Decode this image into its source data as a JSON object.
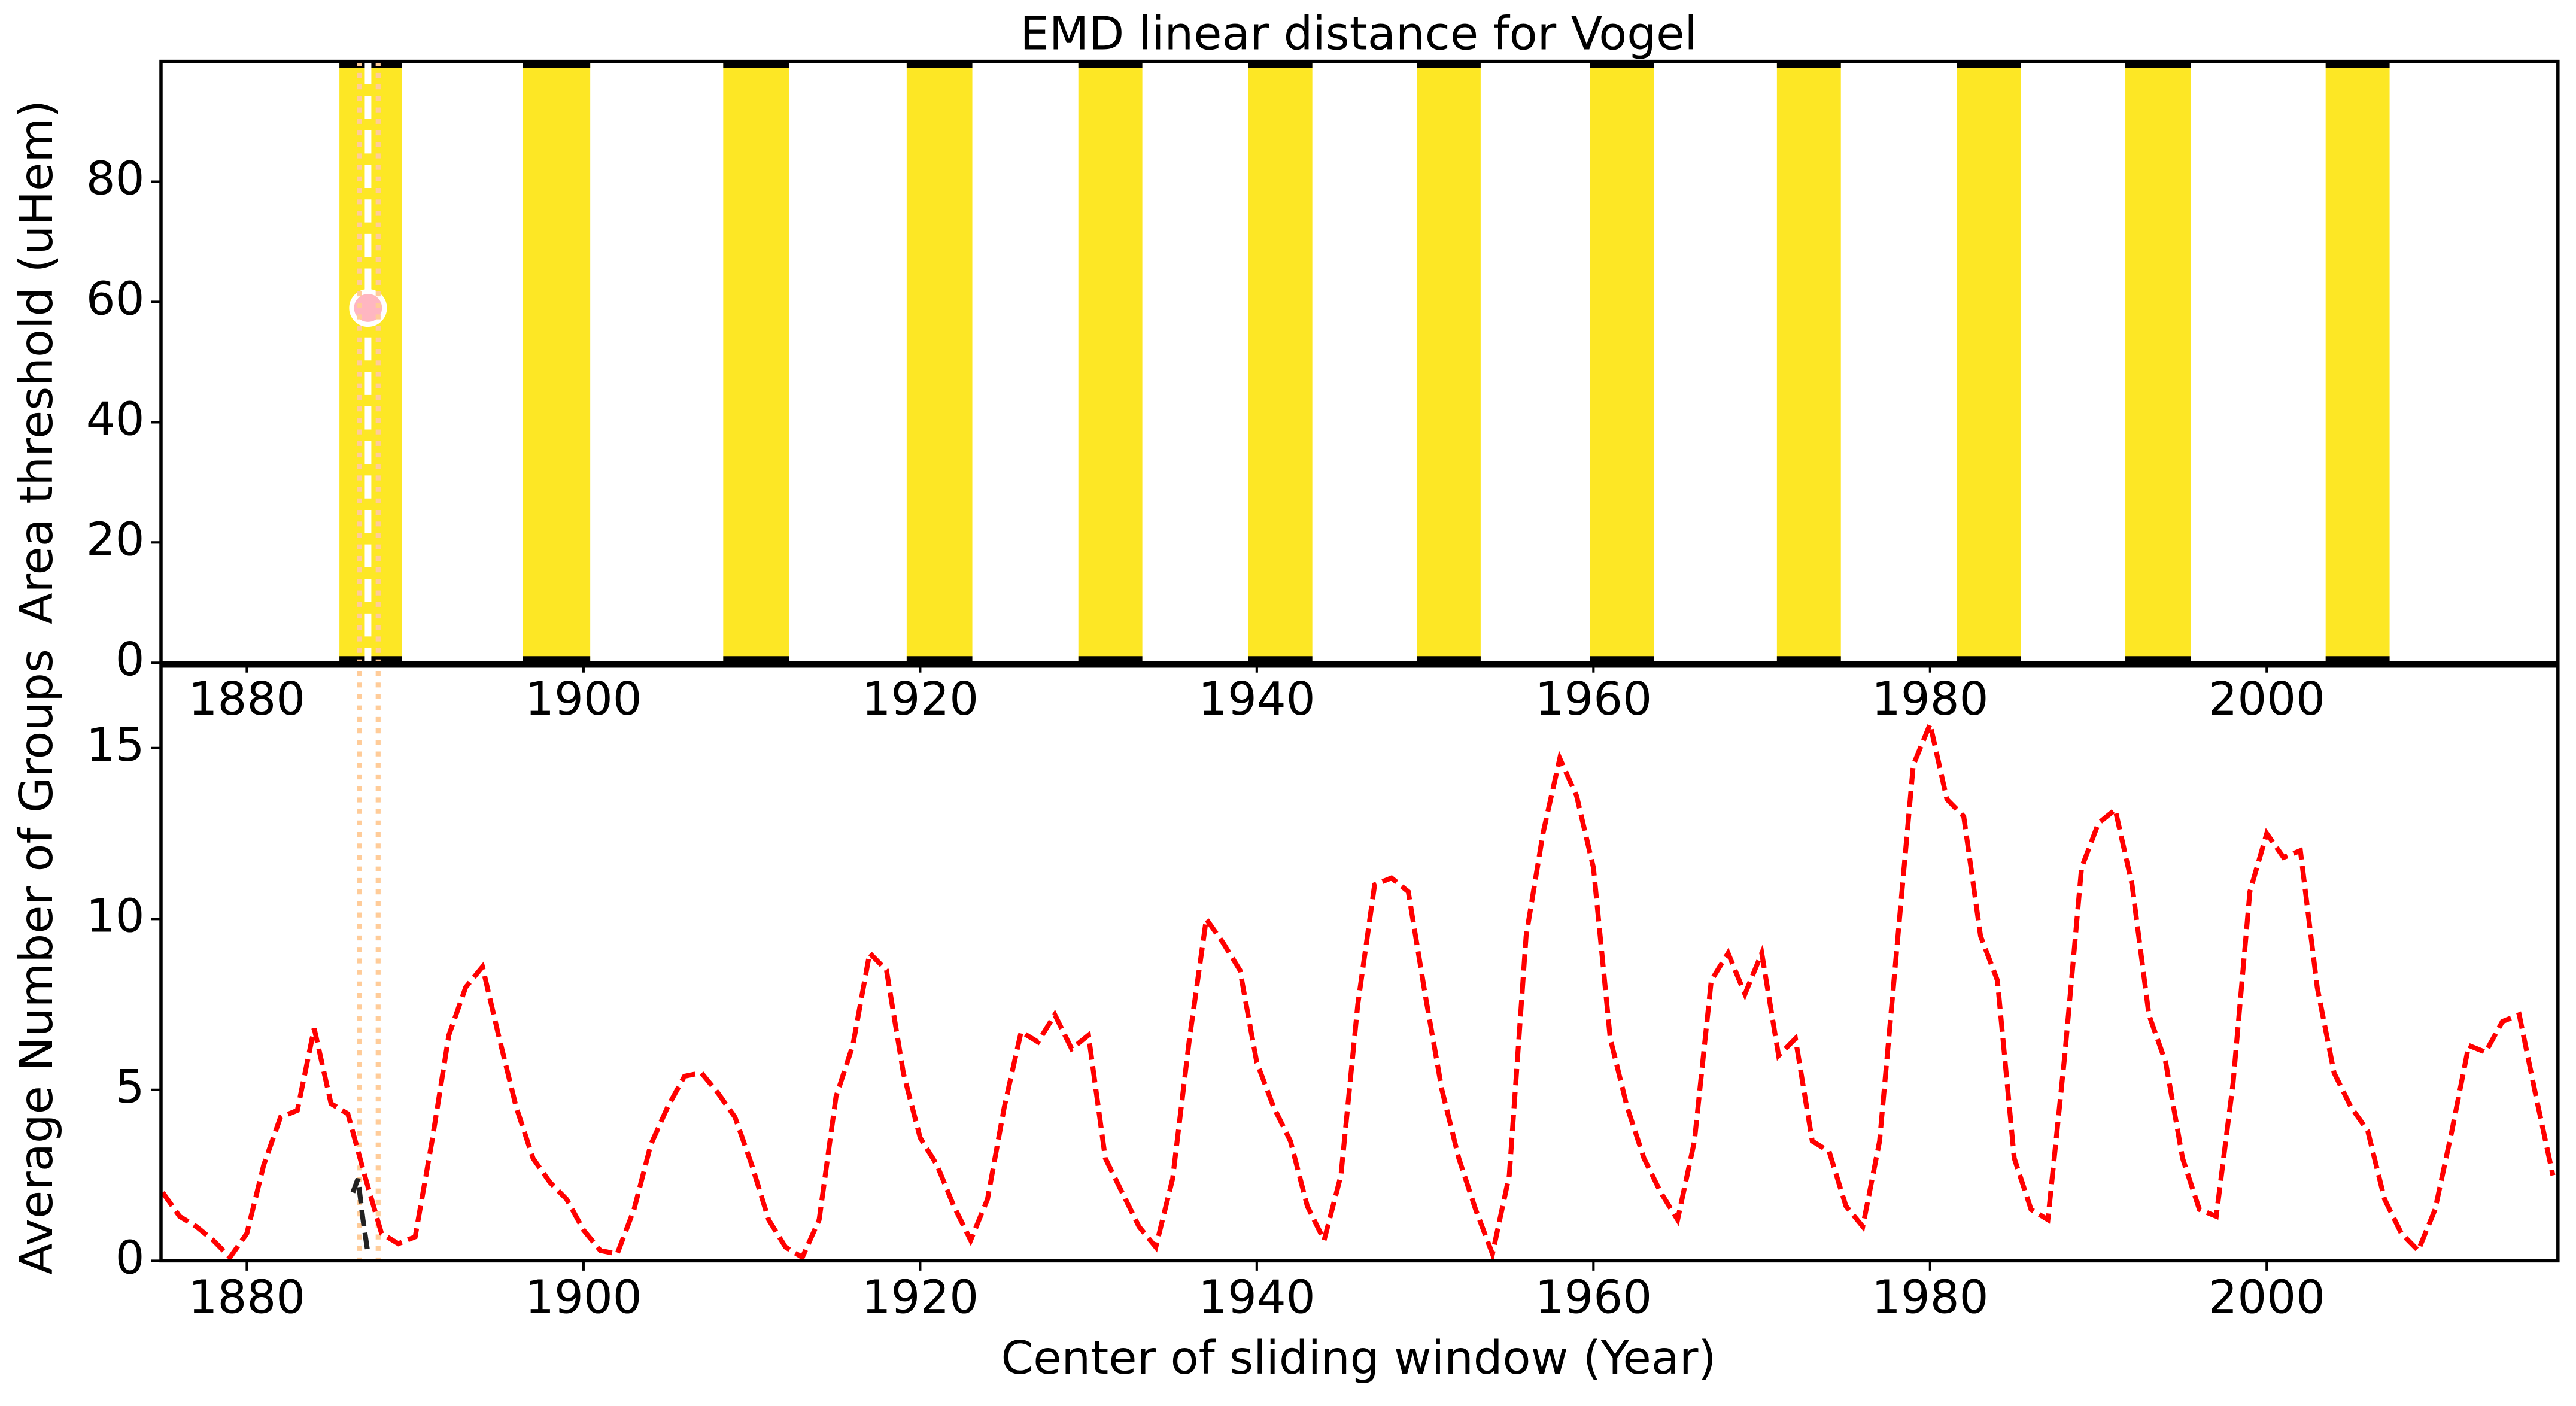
{
  "chart_data": [
    {
      "type": "bands",
      "title": "EMD linear distance for Vogel",
      "y_label": "Area threshold (uHem)",
      "xlim": [
        1874.9,
        2017.3
      ],
      "xticks": [
        1880,
        1900,
        1920,
        1940,
        1960,
        1980,
        2000
      ],
      "ylim": [
        0,
        100
      ],
      "yticks": [
        0,
        20,
        40,
        60,
        80
      ],
      "band_color": "#fde725",
      "edge_color": "#000000",
      "bands": [
        [
          1885.5,
          1889.2
        ],
        [
          1896.4,
          1900.4
        ],
        [
          1908.3,
          1912.2
        ],
        [
          1919.2,
          1923.1
        ],
        [
          1929.4,
          1933.2
        ],
        [
          1939.5,
          1943.3
        ],
        [
          1949.5,
          1953.3
        ],
        [
          1959.8,
          1963.6
        ],
        [
          1970.9,
          1974.7
        ],
        [
          1981.6,
          1985.4
        ],
        [
          1991.6,
          1995.5
        ],
        [
          2003.5,
          2007.3
        ]
      ],
      "marker": {
        "x": 1887.2,
        "y": 59,
        "color": "#ffb6c1"
      },
      "vline_x": 1887.2,
      "highlight_x": [
        1886.7,
        1887.8
      ],
      "highlight_color": "#ffcc99"
    },
    {
      "type": "line",
      "x_label": "Center of sliding window (Year)",
      "y_label": "Average Number of Groups",
      "xlim": [
        1874.9,
        2017.3
      ],
      "xticks": [
        1880,
        1900,
        1920,
        1940,
        1960,
        1980,
        2000
      ],
      "ylim": [
        0,
        17.4
      ],
      "yticks": [
        0,
        5,
        10,
        15
      ],
      "series": [
        {
          "color": "#ff0000",
          "dashed": true,
          "x": [
            1875,
            1876,
            1877,
            1878,
            1879,
            1880,
            1881,
            1882,
            1883,
            1884,
            1885,
            1886,
            1887,
            1888,
            1889,
            1890,
            1891,
            1892,
            1893,
            1894,
            1895,
            1896,
            1897,
            1898,
            1899,
            1900,
            1901,
            1902,
            1903,
            1904,
            1905,
            1906,
            1907,
            1908,
            1909,
            1910,
            1911,
            1912,
            1913,
            1914,
            1915,
            1916,
            1917,
            1918,
            1919,
            1920,
            1921,
            1922,
            1923,
            1924,
            1925,
            1926,
            1927,
            1928,
            1929,
            1930,
            1931,
            1932,
            1933,
            1934,
            1935,
            1936,
            1937,
            1938,
            1939,
            1940,
            1941,
            1942,
            1943,
            1944,
            1945,
            1946,
            1947,
            1948,
            1949,
            1950,
            1951,
            1952,
            1953,
            1954,
            1955,
            1956,
            1957,
            1958,
            1959,
            1960,
            1961,
            1962,
            1963,
            1964,
            1965,
            1966,
            1967,
            1968,
            1969,
            1970,
            1971,
            1972,
            1973,
            1974,
            1975,
            1976,
            1977,
            1978,
            1979,
            1980,
            1981,
            1982,
            1983,
            1984,
            1985,
            1986,
            1987,
            1988,
            1989,
            1990,
            1991,
            1992,
            1993,
            1994,
            1995,
            1996,
            1997,
            1998,
            1999,
            2000,
            2001,
            2002,
            2003,
            2004,
            2005,
            2006,
            2007,
            2008,
            2009,
            2010,
            2011,
            2012,
            2013,
            2014,
            2015,
            2016,
            2017
          ],
          "values": [
            2.0,
            1.3,
            1.0,
            0.6,
            0.1,
            0.8,
            2.8,
            4.2,
            4.4,
            6.8,
            4.6,
            4.3,
            2.5,
            0.8,
            0.5,
            0.7,
            3.5,
            6.6,
            8.0,
            8.6,
            6.5,
            4.5,
            3.0,
            2.3,
            1.8,
            0.9,
            0.3,
            0.2,
            1.5,
            3.4,
            4.5,
            5.4,
            5.5,
            4.9,
            4.2,
            2.8,
            1.2,
            0.4,
            0.1,
            1.2,
            4.8,
            6.3,
            9.0,
            8.5,
            5.5,
            3.6,
            2.8,
            1.6,
            0.6,
            1.8,
            4.5,
            6.7,
            6.4,
            7.2,
            6.2,
            6.6,
            3.0,
            2.0,
            1.0,
            0.4,
            2.4,
            6.5,
            10.0,
            9.3,
            8.5,
            5.8,
            4.5,
            3.5,
            1.6,
            0.6,
            2.5,
            7.5,
            11.0,
            11.2,
            10.8,
            7.8,
            5.0,
            3.0,
            1.5,
            0.2,
            2.5,
            9.5,
            12.5,
            14.7,
            13.6,
            11.5,
            6.5,
            4.5,
            3.0,
            2.0,
            1.2,
            3.5,
            8.2,
            9.0,
            7.8,
            9.0,
            6.0,
            6.5,
            3.5,
            3.2,
            1.6,
            1.0,
            3.5,
            9.0,
            14.5,
            15.7,
            13.5,
            13.0,
            9.5,
            8.2,
            3.0,
            1.5,
            1.2,
            6.0,
            11.5,
            12.8,
            13.2,
            11.0,
            7.2,
            5.8,
            3.0,
            1.5,
            1.3,
            5.2,
            10.8,
            12.5,
            11.8,
            12.0,
            8.0,
            5.5,
            4.5,
            3.8,
            1.8,
            0.8,
            0.3,
            1.5,
            3.8,
            6.3,
            6.1,
            7.0,
            7.2,
            4.8,
            2.5
          ]
        },
        {
          "color": "#222222",
          "dashed": true,
          "x": [
            1886.3,
            1886.6,
            1886.9,
            1887.2
          ],
          "values": [
            2.0,
            2.4,
            1.2,
            0.2
          ]
        }
      ]
    }
  ]
}
